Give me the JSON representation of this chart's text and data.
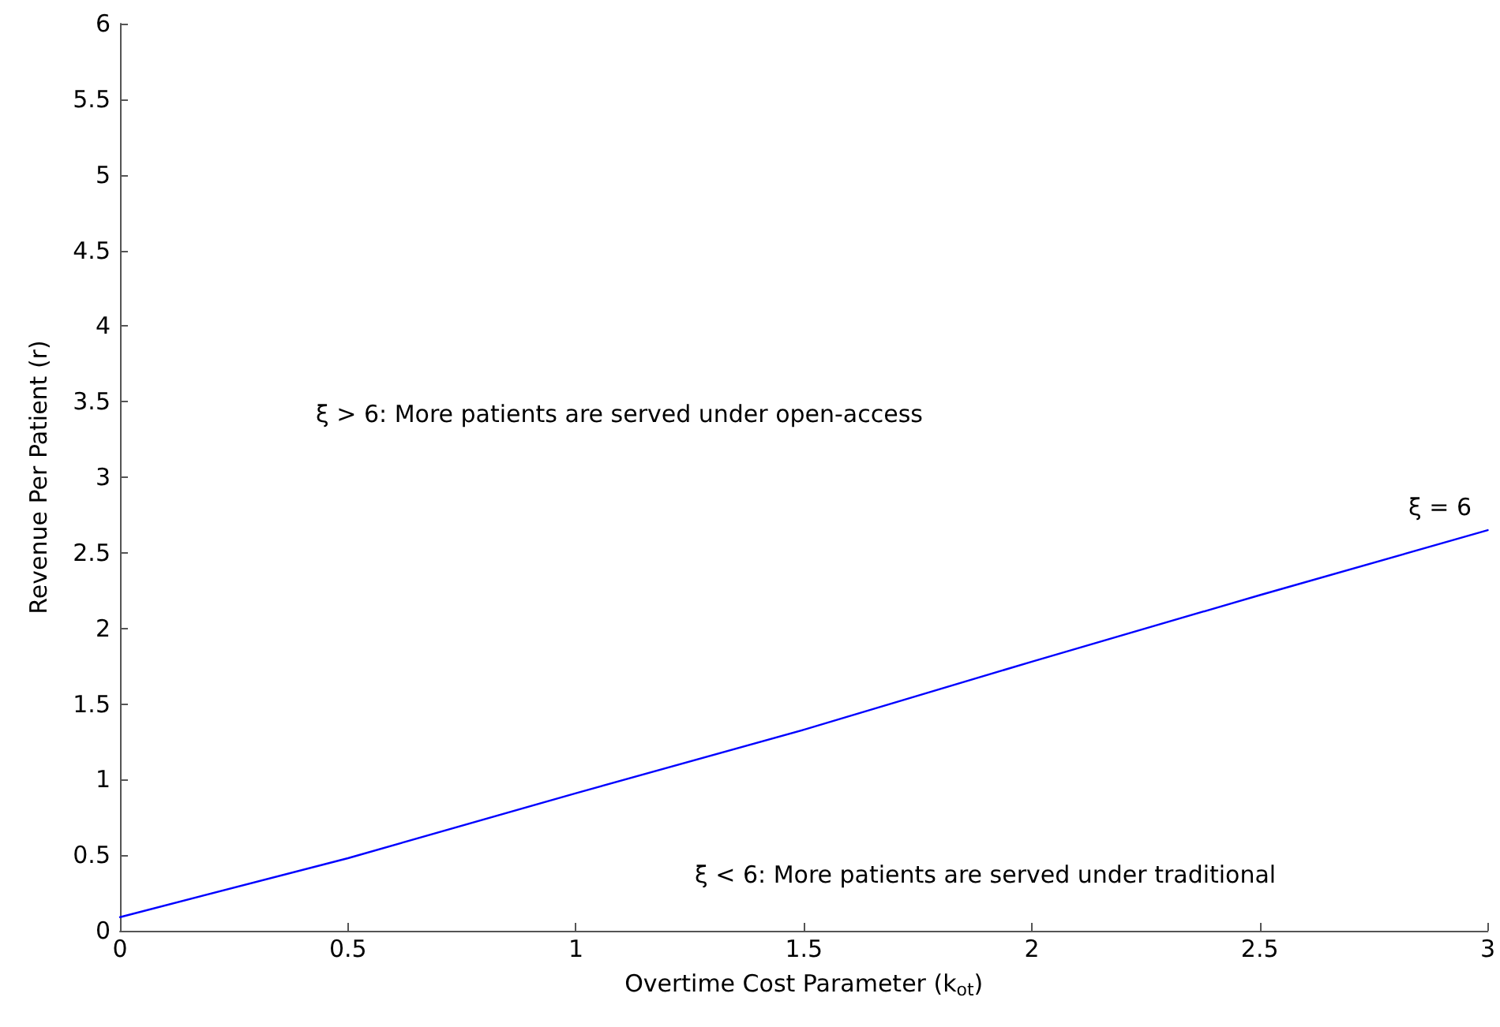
{
  "chart_data": {
    "type": "line",
    "xlabel": "Overtime Cost Parameter (k$_{ot}$)",
    "ylabel": "Revenue Per Patient (r)",
    "x": [
      0,
      0.5,
      1,
      1.5,
      2,
      2.5,
      3
    ],
    "series": [
      {
        "color": "#0000ff",
        "values": [
          0.09,
          0.48,
          0.91,
          1.33,
          1.78,
          2.22,
          2.65
        ]
      }
    ],
    "xlim": [
      0,
      3
    ],
    "xticks": [
      0,
      0.5,
      1,
      1.5,
      2,
      2.5,
      3
    ],
    "ylim": [
      0,
      6
    ],
    "yticks": [
      0,
      0.5,
      1,
      1.5,
      2,
      2.5,
      3,
      3.5,
      4,
      4.5,
      5,
      5.5,
      6
    ],
    "annotations": [
      "ξ = 6",
      "ξ > 6: More patients are served under open-access",
      "ξ < 6: More patients are served under traditional"
    ],
    "grid": false,
    "marker": "none",
    "line_style": "solid"
  }
}
